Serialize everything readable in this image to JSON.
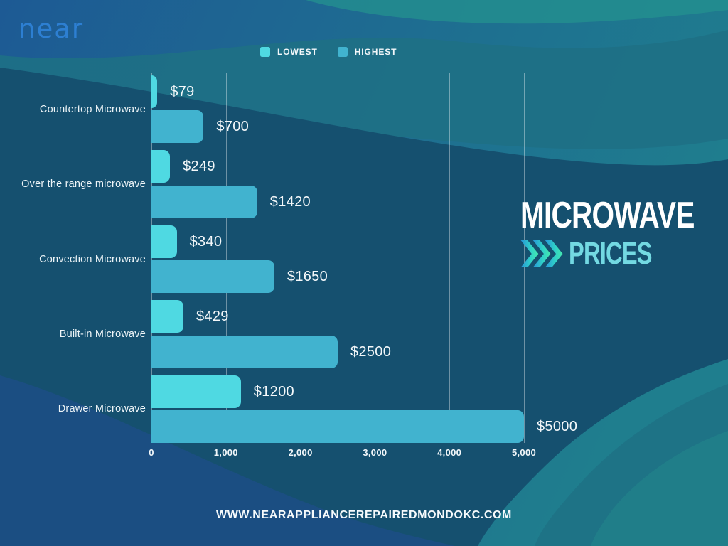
{
  "brand": {
    "logo_text": "near"
  },
  "legend": {
    "items": [
      {
        "label": "LOWEST",
        "color": "#4fd9e2"
      },
      {
        "label": "HIGHEST",
        "color": "#41b3cf"
      }
    ]
  },
  "title": {
    "line1": "MICROWAVE",
    "line2": "PRICES",
    "chevron_icon": "triple-chevron-right-icon"
  },
  "footer": {
    "url": "WWW.NEARAPPLIANCEREPAIREDMONDOKC.COM"
  },
  "colors": {
    "lowest_series": "#4fd9e2",
    "highest_series": "#41b3cf",
    "accent_title": "#73d9e2",
    "brand_blue": "#2d7fd2",
    "background_dark_teal": "#15506f",
    "background_blue": "#1c5a92"
  },
  "chart_data": {
    "type": "bar",
    "orientation": "horizontal",
    "title": "Microwave Prices",
    "categories": [
      "Countertop Microwave",
      "Over the range microwave",
      "Convection Microwave",
      "Built-in Microwave",
      "Drawer Microwave"
    ],
    "series": [
      {
        "name": "LOWEST",
        "color": "#4fd9e2",
        "values": [
          79,
          249,
          340,
          429,
          1200
        ],
        "labels": [
          "$79",
          "$249",
          "$340",
          "$429",
          "$1200"
        ]
      },
      {
        "name": "HIGHEST",
        "color": "#41b3cf",
        "values": [
          700,
          1420,
          1650,
          2500,
          5000
        ],
        "labels": [
          "$700",
          "$1420",
          "$1650",
          "$2500",
          "$5000"
        ]
      }
    ],
    "xlim": [
      0,
      5000
    ],
    "x_tick_values": [
      0,
      1000,
      2000,
      3000,
      4000,
      5000
    ],
    "x_ticks": [
      "0",
      "1,000",
      "2,000",
      "3,000",
      "4,000",
      "5,000"
    ],
    "grid": true,
    "legend_position": "top"
  }
}
